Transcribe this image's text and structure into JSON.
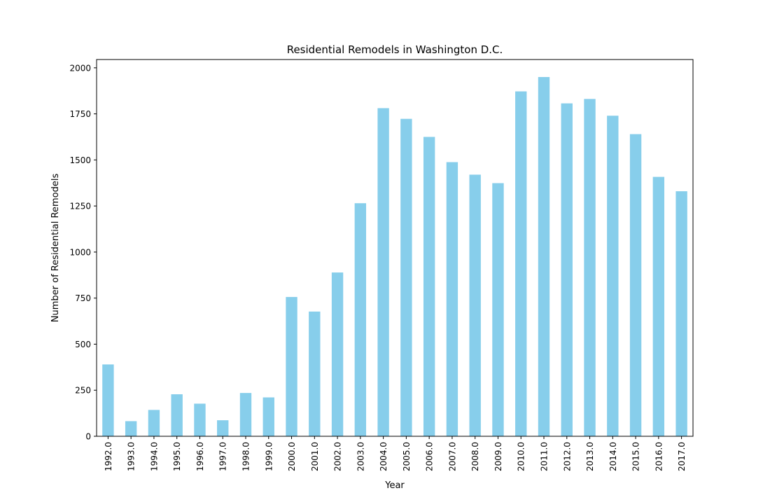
{
  "chart_data": {
    "type": "bar",
    "title": "Residential Remodels in Washington D.C.",
    "xlabel": "Year",
    "ylabel": "Number of Residential Remodels",
    "categories": [
      "1992.0",
      "1993.0",
      "1994.0",
      "1995.0",
      "1996.0",
      "1997.0",
      "1998.0",
      "1999.0",
      "2000.0",
      "2001.0",
      "2002.0",
      "2003.0",
      "2004.0",
      "2005.0",
      "2006.0",
      "2007.0",
      "2008.0",
      "2009.0",
      "2010.0",
      "2011.0",
      "2012.0",
      "2013.0",
      "2014.0",
      "2015.0",
      "2016.0",
      "2017.0"
    ],
    "values": [
      390,
      82,
      143,
      228,
      177,
      87,
      235,
      211,
      756,
      677,
      889,
      1265,
      1781,
      1723,
      1625,
      1488,
      1420,
      1374,
      1872,
      1950,
      1807,
      1831,
      1740,
      1640,
      1408,
      1330
    ],
    "ylim": [
      0,
      2045
    ],
    "yticks": [
      0,
      250,
      500,
      750,
      1000,
      1250,
      1500,
      1750,
      2000
    ],
    "grid": false,
    "legend": "none",
    "bar_color": "#87ceeb"
  }
}
